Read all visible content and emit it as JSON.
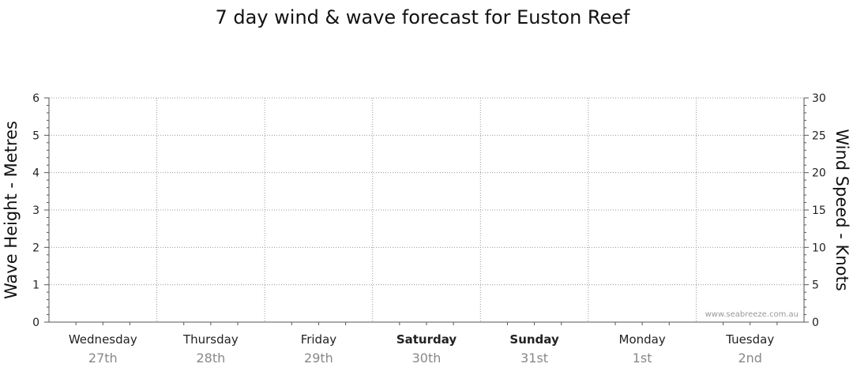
{
  "chart_data": {
    "type": "line",
    "title": "7 day wind & wave forecast for Euston Reef",
    "y_left": {
      "label": "Wave Height - Metres",
      "ylim": [
        0,
        6
      ],
      "ticks": [
        0,
        1,
        2,
        3,
        4,
        5,
        6
      ]
    },
    "y_right": {
      "label": "Wind Speed - Knots",
      "ylim": [
        0,
        30
      ],
      "ticks": [
        0,
        5,
        10,
        15,
        20,
        25,
        30
      ]
    },
    "categories": [
      {
        "day": "Wednesday",
        "date": "27th",
        "bold": false
      },
      {
        "day": "Thursday",
        "date": "28th",
        "bold": false
      },
      {
        "day": "Friday",
        "date": "29th",
        "bold": false
      },
      {
        "day": "Saturday",
        "date": "30th",
        "bold": true
      },
      {
        "day": "Sunday",
        "date": "31st",
        "bold": true
      },
      {
        "day": "Monday",
        "date": "1st",
        "bold": false
      },
      {
        "day": "Tuesday",
        "date": "2nd",
        "bold": false
      }
    ],
    "series": [],
    "grid": true,
    "watermark": "www.seabreeze.com.au"
  },
  "colors": {
    "grid": "#999999",
    "axis": "#555555"
  }
}
